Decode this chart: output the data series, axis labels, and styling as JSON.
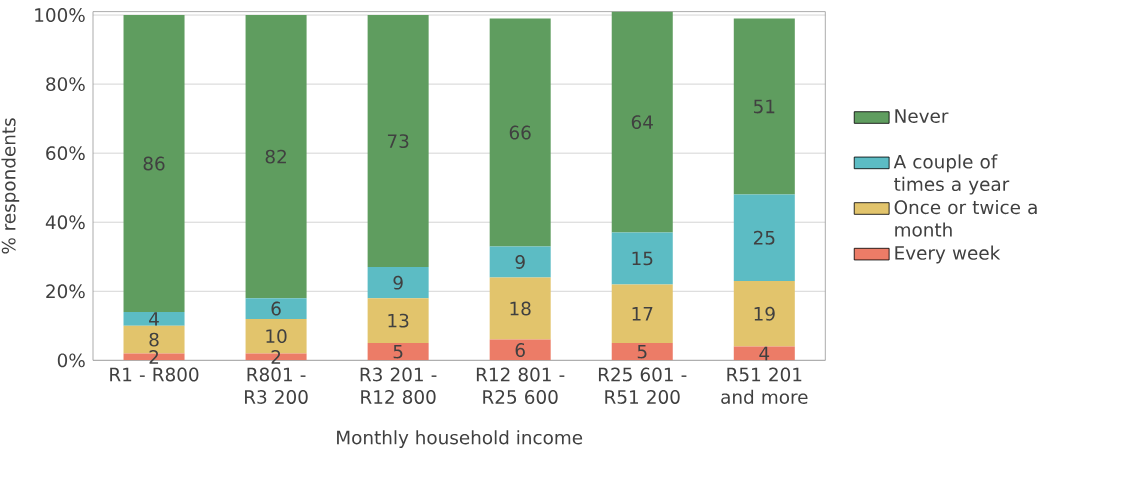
{
  "chart_data": {
    "type": "bar",
    "stacked": true,
    "xlabel": "Monthly household income",
    "ylabel": "% respondents",
    "categories": [
      "R1 - R800",
      "R801 - R3 200",
      "R3 201 - R12 800",
      "R12 801 - R25 600",
      "R25 601 - R51 200",
      "R51 201 and more"
    ],
    "series": [
      {
        "name": "Every week",
        "color": "#ec7c67",
        "values": [
          2,
          2,
          5,
          6,
          5,
          4
        ]
      },
      {
        "name": "Once or twice a month",
        "color": "#e2c46c",
        "values": [
          8,
          10,
          13,
          18,
          17,
          19
        ]
      },
      {
        "name": "A couple of times a year",
        "color": "#5cbcc4",
        "values": [
          4,
          6,
          9,
          9,
          15,
          25
        ]
      },
      {
        "name": "Never",
        "color": "#5f9d5f",
        "values": [
          86,
          82,
          73,
          66,
          64,
          51
        ]
      }
    ],
    "ylim": [
      0,
      101
    ],
    "yticks": [
      {
        "value": 0,
        "label": "0%"
      },
      {
        "value": 20,
        "label": "20%"
      },
      {
        "value": 40,
        "label": "40%"
      },
      {
        "value": 60,
        "label": "60%"
      },
      {
        "value": 80,
        "label": "80%"
      },
      {
        "value": 100,
        "label": "100%"
      }
    ],
    "grid": "y",
    "legend": "right",
    "data_labels": true
  }
}
